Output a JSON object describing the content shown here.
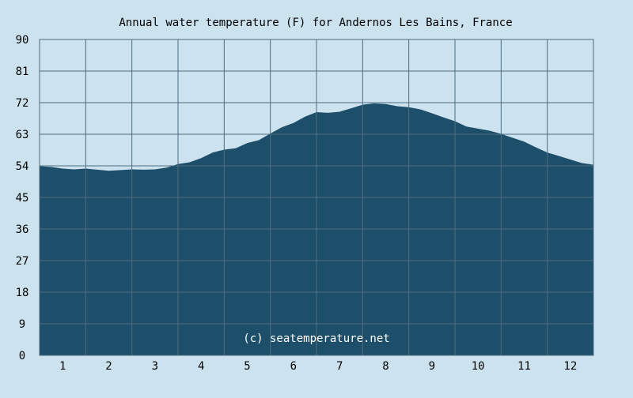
{
  "chart_data": {
    "type": "area",
    "title": "Annual water temperature (F) for Andernos Les Bains, France",
    "xlabel": "",
    "ylabel": "",
    "x_ticks": [
      "1",
      "2",
      "3",
      "4",
      "5",
      "6",
      "7",
      "8",
      "9",
      "10",
      "11",
      "12"
    ],
    "y_ticks": [
      "0",
      "9",
      "18",
      "27",
      "36",
      "45",
      "54",
      "63",
      "72",
      "81",
      "90"
    ],
    "ylim": [
      0,
      90
    ],
    "xlim": [
      0.5,
      12.5
    ],
    "grid": true,
    "colors": {
      "background": "#cce3ef",
      "area": "#1e4f6a",
      "grid": "#4d6c80",
      "text": "#000000"
    },
    "series": [
      {
        "x": [
          0.5,
          0.75,
          1.0,
          1.25,
          1.5,
          1.75,
          2.0,
          2.25,
          2.5,
          2.75,
          3.0,
          3.25,
          3.5,
          3.75,
          4.0,
          4.25,
          4.5,
          4.75,
          5.0,
          5.25,
          5.5,
          5.75,
          6.0,
          6.25,
          6.5,
          6.75,
          7.0,
          7.25,
          7.5,
          7.75,
          8.0,
          8.25,
          8.5,
          8.75,
          9.0,
          9.25,
          9.5,
          9.75,
          10.0,
          10.25,
          10.5,
          10.75,
          11.0,
          11.25,
          11.5,
          11.75,
          12.0,
          12.25,
          12.5
        ],
        "values": [
          53.9,
          53.7,
          53.2,
          53.0,
          53.2,
          52.9,
          52.6,
          52.8,
          53.0,
          52.9,
          53.0,
          53.5,
          54.5,
          55.0,
          56.2,
          57.8,
          58.6,
          59.0,
          60.5,
          61.3,
          63.2,
          65.0,
          66.2,
          68.0,
          69.3,
          69.1,
          69.4,
          70.4,
          71.4,
          71.8,
          71.6,
          71.0,
          70.7,
          70.1,
          69.0,
          67.8,
          66.7,
          65.2,
          64.6,
          64.0,
          63.1,
          62.0,
          60.9,
          59.3,
          57.8,
          56.8,
          55.8,
          54.8,
          54.3
        ]
      }
    ]
  },
  "watermark": "(c) seatemperature.net"
}
